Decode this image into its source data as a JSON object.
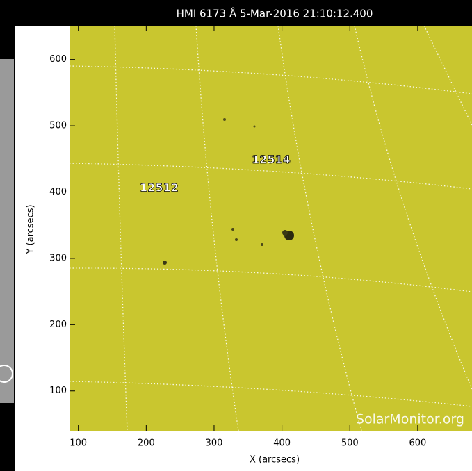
{
  "chart_data": {
    "type": "image",
    "title": "HMI 6173 Å  5-Mar-2016 21:10:12.400",
    "xlabel": "X (arcsecs)",
    "ylabel": "Y (arcsecs)",
    "xlim": [
      87,
      680
    ],
    "ylim": [
      40,
      651
    ],
    "xticks": [
      100,
      200,
      300,
      400,
      500,
      600
    ],
    "yticks": [
      100,
      200,
      300,
      400,
      500,
      600
    ],
    "color": "#c9c62f",
    "annotations": [
      {
        "text": "12514",
        "x": 384,
        "y": 448
      },
      {
        "text": "12512",
        "x": 219,
        "y": 406
      }
    ],
    "watermark": "SolarMonitor.org"
  }
}
